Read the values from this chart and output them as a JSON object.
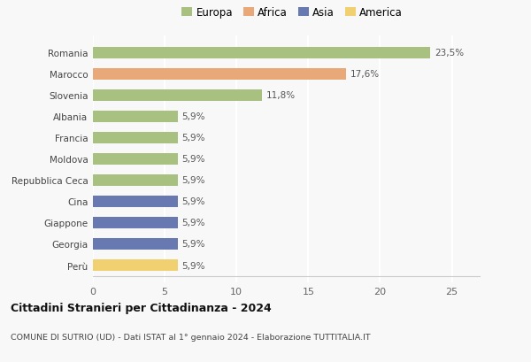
{
  "categories": [
    "Romania",
    "Marocco",
    "Slovenia",
    "Albania",
    "Francia",
    "Moldova",
    "Repubblica Ceca",
    "Cina",
    "Giappone",
    "Georgia",
    "Perù"
  ],
  "values": [
    23.5,
    17.6,
    11.8,
    5.9,
    5.9,
    5.9,
    5.9,
    5.9,
    5.9,
    5.9,
    5.9
  ],
  "labels": [
    "23,5%",
    "17,6%",
    "11,8%",
    "5,9%",
    "5,9%",
    "5,9%",
    "5,9%",
    "5,9%",
    "5,9%",
    "5,9%",
    "5,9%"
  ],
  "colors": [
    "#a8c080",
    "#e8a878",
    "#a8c080",
    "#a8c080",
    "#a8c080",
    "#a8c080",
    "#a8c080",
    "#6878b0",
    "#6878b0",
    "#6878b0",
    "#f0d070"
  ],
  "legend_labels": [
    "Europa",
    "Africa",
    "Asia",
    "America"
  ],
  "legend_colors": [
    "#a8c080",
    "#e8a878",
    "#6878b0",
    "#f0d070"
  ],
  "xlim": [
    0,
    27
  ],
  "xticks": [
    0,
    5,
    10,
    15,
    20,
    25
  ],
  "title": "Cittadini Stranieri per Cittadinanza - 2024",
  "subtitle": "COMUNE DI SUTRIO (UD) - Dati ISTAT al 1° gennaio 2024 - Elaborazione TUTTITALIA.IT",
  "bg_color": "#f8f8f8",
  "grid_color": "#ffffff",
  "bar_height": 0.55
}
